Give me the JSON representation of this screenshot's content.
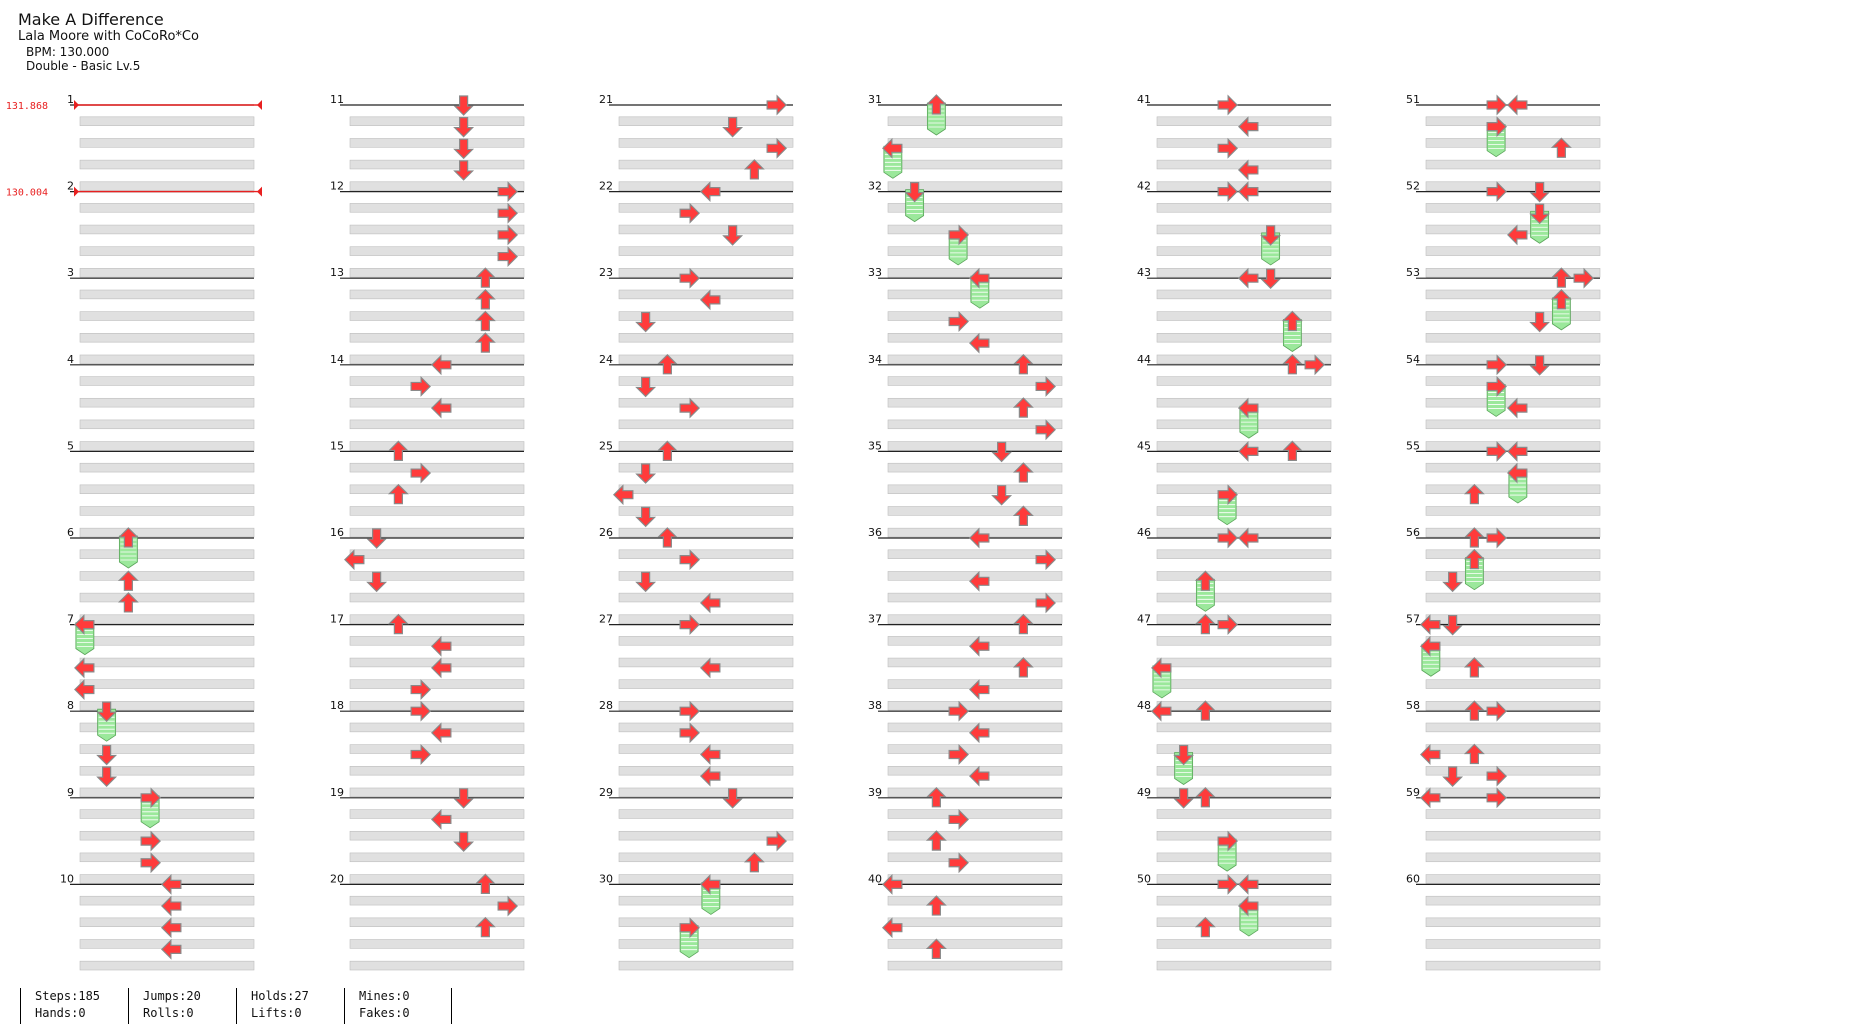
{
  "song": {
    "title": "Make A Difference",
    "artist": "Lala Moore with CoCoRo*Co",
    "bpm_text": "BPM: 130.000",
    "difficulty_text": "Double - Basic  Lv.5"
  },
  "bpm_changes": [
    {
      "measure": 1,
      "label": "131.868"
    },
    {
      "measure": 2,
      "label": "130.004"
    }
  ],
  "colors": {
    "arrow": "#ff3b3b",
    "arrow_outline": "#8a8a8a",
    "hold_body": "#9be89b",
    "hold_stripe": "#ffffff",
    "bpm_line": "#e82020",
    "row_band": "#e0e0e0",
    "measure_line": "#222222"
  },
  "columns": [
    {
      "measures": [
        1,
        2,
        3,
        4,
        5,
        6,
        7,
        8,
        9,
        10
      ]
    },
    {
      "measures": [
        11,
        12,
        13,
        14,
        15,
        16,
        17,
        18,
        19,
        20
      ]
    },
    {
      "measures": [
        21,
        22,
        23,
        24,
        25,
        26,
        27,
        28,
        29,
        30
      ]
    },
    {
      "measures": [
        31,
        32,
        33,
        34,
        35,
        36,
        37,
        38,
        39,
        40
      ]
    },
    {
      "measures": [
        41,
        42,
        43,
        44,
        45,
        46,
        47,
        48,
        49,
        50
      ]
    },
    {
      "measures": [
        51,
        52,
        53,
        54,
        55,
        56,
        57,
        58,
        59,
        60
      ]
    }
  ],
  "notes": [
    {
      "m": 6,
      "b": 0,
      "lane": 2,
      "type": "hold"
    },
    {
      "m": 6,
      "b": 2,
      "lane": 2,
      "type": "tap"
    },
    {
      "m": 6,
      "b": 3,
      "lane": 2,
      "type": "tap"
    },
    {
      "m": 7,
      "b": 0,
      "lane": 0,
      "type": "hold"
    },
    {
      "m": 7,
      "b": 2,
      "lane": 0,
      "type": "tap"
    },
    {
      "m": 7,
      "b": 3,
      "lane": 0,
      "type": "tap"
    },
    {
      "m": 8,
      "b": 0,
      "lane": 1,
      "type": "hold"
    },
    {
      "m": 8,
      "b": 2,
      "lane": 1,
      "type": "tap"
    },
    {
      "m": 8,
      "b": 3,
      "lane": 1,
      "type": "tap"
    },
    {
      "m": 9,
      "b": 0,
      "lane": 3,
      "type": "hold"
    },
    {
      "m": 9,
      "b": 2,
      "lane": 3,
      "type": "tap"
    },
    {
      "m": 9,
      "b": 3,
      "lane": 3,
      "type": "tap"
    },
    {
      "m": 10,
      "b": 0,
      "lane": 4,
      "type": "tap"
    },
    {
      "m": 10,
      "b": 1,
      "lane": 4,
      "type": "tap"
    },
    {
      "m": 10,
      "b": 2,
      "lane": 4,
      "type": "tap"
    },
    {
      "m": 10,
      "b": 3,
      "lane": 4,
      "type": "tap"
    },
    {
      "m": 11,
      "b": 0,
      "lane": 5,
      "type": "tap"
    },
    {
      "m": 11,
      "b": 1,
      "lane": 5,
      "type": "tap"
    },
    {
      "m": 11,
      "b": 2,
      "lane": 5,
      "type": "tap"
    },
    {
      "m": 11,
      "b": 3,
      "lane": 5,
      "type": "tap"
    },
    {
      "m": 12,
      "b": 0,
      "lane": 7,
      "type": "tap"
    },
    {
      "m": 12,
      "b": 1,
      "lane": 7,
      "type": "tap"
    },
    {
      "m": 12,
      "b": 2,
      "lane": 7,
      "type": "tap"
    },
    {
      "m": 12,
      "b": 3,
      "lane": 7,
      "type": "tap"
    },
    {
      "m": 13,
      "b": 0,
      "lane": 6,
      "type": "tap"
    },
    {
      "m": 13,
      "b": 1,
      "lane": 6,
      "type": "tap"
    },
    {
      "m": 13,
      "b": 2,
      "lane": 6,
      "type": "tap"
    },
    {
      "m": 13,
      "b": 3,
      "lane": 6,
      "type": "tap"
    },
    {
      "m": 14,
      "b": 0,
      "lane": 4,
      "type": "tap"
    },
    {
      "m": 14,
      "b": 1,
      "lane": 3,
      "type": "tap"
    },
    {
      "m": 14,
      "b": 2,
      "lane": 4,
      "type": "tap"
    },
    {
      "m": 15,
      "b": 0,
      "lane": 2,
      "type": "tap"
    },
    {
      "m": 15,
      "b": 1,
      "lane": 3,
      "type": "tap"
    },
    {
      "m": 15,
      "b": 2,
      "lane": 2,
      "type": "tap"
    },
    {
      "m": 16,
      "b": 0,
      "lane": 1,
      "type": "tap"
    },
    {
      "m": 16,
      "b": 1,
      "lane": 0,
      "type": "tap"
    },
    {
      "m": 16,
      "b": 2,
      "lane": 1,
      "type": "tap"
    },
    {
      "m": 17,
      "b": 0,
      "lane": 2,
      "type": "tap"
    },
    {
      "m": 17,
      "b": 1,
      "lane": 4,
      "type": "tap"
    },
    {
      "m": 17,
      "b": 2,
      "lane": 4,
      "type": "tap"
    },
    {
      "m": 17,
      "b": 3,
      "lane": 3,
      "type": "tap"
    },
    {
      "m": 18,
      "b": 0,
      "lane": 3,
      "type": "tap"
    },
    {
      "m": 18,
      "b": 1,
      "lane": 4,
      "type": "tap"
    },
    {
      "m": 18,
      "b": 2,
      "lane": 3,
      "type": "tap"
    },
    {
      "m": 19,
      "b": 0,
      "lane": 5,
      "type": "tap"
    },
    {
      "m": 19,
      "b": 1,
      "lane": 4,
      "type": "tap"
    },
    {
      "m": 19,
      "b": 2,
      "lane": 5,
      "type": "tap"
    },
    {
      "m": 20,
      "b": 0,
      "lane": 6,
      "type": "tap"
    },
    {
      "m": 20,
      "b": 1,
      "lane": 7,
      "type": "tap"
    },
    {
      "m": 20,
      "b": 2,
      "lane": 6,
      "type": "tap"
    },
    {
      "m": 21,
      "b": 0,
      "lane": 7,
      "type": "tap"
    },
    {
      "m": 21,
      "b": 1,
      "lane": 5,
      "type": "tap"
    },
    {
      "m": 21,
      "b": 2,
      "lane": 7,
      "type": "tap"
    },
    {
      "m": 21,
      "b": 3,
      "lane": 6,
      "type": "tap"
    },
    {
      "m": 22,
      "b": 0,
      "lane": 4,
      "type": "tap"
    },
    {
      "m": 22,
      "b": 1,
      "lane": 3,
      "type": "tap"
    },
    {
      "m": 22,
      "b": 2,
      "lane": 5,
      "type": "tap"
    },
    {
      "m": 23,
      "b": 0,
      "lane": 3,
      "type": "tap"
    },
    {
      "m": 23,
      "b": 1,
      "lane": 4,
      "type": "tap"
    },
    {
      "m": 23,
      "b": 2,
      "lane": 1,
      "type": "tap"
    },
    {
      "m": 24,
      "b": 0,
      "lane": 2,
      "type": "tap"
    },
    {
      "m": 24,
      "b": 1,
      "lane": 1,
      "type": "tap"
    },
    {
      "m": 24,
      "b": 2,
      "lane": 3,
      "type": "tap"
    },
    {
      "m": 25,
      "b": 0,
      "lane": 2,
      "type": "tap"
    },
    {
      "m": 25,
      "b": 1,
      "lane": 1,
      "type": "tap"
    },
    {
      "m": 25,
      "b": 2,
      "lane": 0,
      "type": "tap"
    },
    {
      "m": 25,
      "b": 3,
      "lane": 1,
      "type": "tap"
    },
    {
      "m": 26,
      "b": 0,
      "lane": 2,
      "type": "tap"
    },
    {
      "m": 26,
      "b": 1,
      "lane": 3,
      "type": "tap"
    },
    {
      "m": 26,
      "b": 2,
      "lane": 1,
      "type": "tap"
    },
    {
      "m": 26,
      "b": 3,
      "lane": 4,
      "type": "tap"
    },
    {
      "m": 27,
      "b": 0,
      "lane": 3,
      "type": "tap"
    },
    {
      "m": 27,
      "b": 2,
      "lane": 4,
      "type": "tap"
    },
    {
      "m": 28,
      "b": 0,
      "lane": 3,
      "type": "tap"
    },
    {
      "m": 28,
      "b": 1,
      "lane": 3,
      "type": "tap"
    },
    {
      "m": 28,
      "b": 2,
      "lane": 4,
      "type": "tap"
    },
    {
      "m": 28,
      "b": 3,
      "lane": 4,
      "type": "tap"
    },
    {
      "m": 29,
      "b": 0,
      "lane": 5,
      "type": "tap"
    },
    {
      "m": 29,
      "b": 2,
      "lane": 7,
      "type": "tap"
    },
    {
      "m": 29,
      "b": 3,
      "lane": 6,
      "type": "tap"
    },
    {
      "m": 30,
      "b": 0,
      "lane": 4,
      "type": "hold"
    },
    {
      "m": 30,
      "b": 2,
      "lane": 3,
      "type": "hold"
    },
    {
      "m": 31,
      "b": 0,
      "lane": 2,
      "type": "hold"
    },
    {
      "m": 31,
      "b": 2,
      "lane": 0,
      "type": "hold"
    },
    {
      "m": 32,
      "b": 0,
      "lane": 1,
      "type": "hold"
    },
    {
      "m": 32,
      "b": 2,
      "lane": 3,
      "type": "hold"
    },
    {
      "m": 33,
      "b": 0,
      "lane": 4,
      "type": "hold"
    },
    {
      "m": 33,
      "b": 2,
      "lane": 3,
      "type": "tap"
    },
    {
      "m": 33,
      "b": 3,
      "lane": 4,
      "type": "tap"
    },
    {
      "m": 34,
      "b": 0,
      "lane": 6,
      "type": "tap"
    },
    {
      "m": 34,
      "b": 1,
      "lane": 7,
      "type": "tap"
    },
    {
      "m": 34,
      "b": 2,
      "lane": 6,
      "type": "tap"
    },
    {
      "m": 34,
      "b": 3,
      "lane": 7,
      "type": "tap"
    },
    {
      "m": 35,
      "b": 0,
      "lane": 5,
      "type": "tap"
    },
    {
      "m": 35,
      "b": 1,
      "lane": 6,
      "type": "tap"
    },
    {
      "m": 35,
      "b": 2,
      "lane": 5,
      "type": "tap"
    },
    {
      "m": 35,
      "b": 3,
      "lane": 6,
      "type": "tap"
    },
    {
      "m": 36,
      "b": 0,
      "lane": 4,
      "type": "tap"
    },
    {
      "m": 36,
      "b": 1,
      "lane": 7,
      "type": "tap"
    },
    {
      "m": 36,
      "b": 2,
      "lane": 4,
      "type": "tap"
    },
    {
      "m": 36,
      "b": 3,
      "lane": 7,
      "type": "tap"
    },
    {
      "m": 37,
      "b": 0,
      "lane": 6,
      "type": "tap"
    },
    {
      "m": 37,
      "b": 1,
      "lane": 4,
      "type": "tap"
    },
    {
      "m": 37,
      "b": 2,
      "lane": 6,
      "type": "tap"
    },
    {
      "m": 37,
      "b": 3,
      "lane": 4,
      "type": "tap"
    },
    {
      "m": 38,
      "b": 0,
      "lane": 3,
      "type": "tap"
    },
    {
      "m": 38,
      "b": 1,
      "lane": 4,
      "type": "tap"
    },
    {
      "m": 38,
      "b": 2,
      "lane": 3,
      "type": "tap"
    },
    {
      "m": 38,
      "b": 3,
      "lane": 4,
      "type": "tap"
    },
    {
      "m": 39,
      "b": 0,
      "lane": 2,
      "type": "tap"
    },
    {
      "m": 39,
      "b": 1,
      "lane": 3,
      "type": "tap"
    },
    {
      "m": 39,
      "b": 2,
      "lane": 2,
      "type": "tap"
    },
    {
      "m": 39,
      "b": 3,
      "lane": 3,
      "type": "tap"
    },
    {
      "m": 40,
      "b": 0,
      "lane": 0,
      "type": "tap"
    },
    {
      "m": 40,
      "b": 1,
      "lane": 2,
      "type": "tap"
    },
    {
      "m": 40,
      "b": 2,
      "lane": 0,
      "type": "tap"
    },
    {
      "m": 40,
      "b": 3,
      "lane": 2,
      "type": "tap"
    },
    {
      "m": 41,
      "b": 0,
      "lane": 3,
      "type": "tap"
    },
    {
      "m": 41,
      "b": 1,
      "lane": 4,
      "type": "tap"
    },
    {
      "m": 41,
      "b": 2,
      "lane": 3,
      "type": "tap"
    },
    {
      "m": 41,
      "b": 3,
      "lane": 4,
      "type": "tap"
    },
    {
      "m": 42,
      "b": 0,
      "lane": 3,
      "type": "tap"
    },
    {
      "m": 42,
      "b": 0,
      "lane": 4,
      "type": "tap"
    },
    {
      "m": 42,
      "b": 2,
      "lane": 5,
      "type": "hold"
    },
    {
      "m": 43,
      "b": 0,
      "lane": 4,
      "type": "tap"
    },
    {
      "m": 43,
      "b": 0,
      "lane": 5,
      "type": "tap"
    },
    {
      "m": 43,
      "b": 2,
      "lane": 6,
      "type": "hold"
    },
    {
      "m": 44,
      "b": 0,
      "lane": 6,
      "type": "tap"
    },
    {
      "m": 44,
      "b": 0,
      "lane": 7,
      "type": "tap"
    },
    {
      "m": 44,
      "b": 2,
      "lane": 4,
      "type": "hold"
    },
    {
      "m": 45,
      "b": 0,
      "lane": 4,
      "type": "tap"
    },
    {
      "m": 45,
      "b": 0,
      "lane": 6,
      "type": "tap"
    },
    {
      "m": 45,
      "b": 2,
      "lane": 3,
      "type": "hold"
    },
    {
      "m": 46,
      "b": 0,
      "lane": 3,
      "type": "tap"
    },
    {
      "m": 46,
      "b": 0,
      "lane": 4,
      "type": "tap"
    },
    {
      "m": 46,
      "b": 2,
      "lane": 2,
      "type": "hold"
    },
    {
      "m": 47,
      "b": 0,
      "lane": 2,
      "type": "tap"
    },
    {
      "m": 47,
      "b": 0,
      "lane": 3,
      "type": "tap"
    },
    {
      "m": 47,
      "b": 2,
      "lane": 0,
      "type": "hold"
    },
    {
      "m": 48,
      "b": 0,
      "lane": 0,
      "type": "tap"
    },
    {
      "m": 48,
      "b": 0,
      "lane": 2,
      "type": "tap"
    },
    {
      "m": 48,
      "b": 2,
      "lane": 1,
      "type": "hold"
    },
    {
      "m": 49,
      "b": 0,
      "lane": 1,
      "type": "tap"
    },
    {
      "m": 49,
      "b": 0,
      "lane": 2,
      "type": "tap"
    },
    {
      "m": 49,
      "b": 2,
      "lane": 3,
      "type": "hold"
    },
    {
      "m": 50,
      "b": 0,
      "lane": 3,
      "type": "tap"
    },
    {
      "m": 50,
      "b": 0,
      "lane": 4,
      "type": "tap"
    },
    {
      "m": 50,
      "b": 1,
      "lane": 4,
      "type": "hold"
    },
    {
      "m": 50,
      "b": 2,
      "lane": 2,
      "type": "tap"
    },
    {
      "m": 51,
      "b": 0,
      "lane": 3,
      "type": "tap"
    },
    {
      "m": 51,
      "b": 0,
      "lane": 4,
      "type": "tap"
    },
    {
      "m": 51,
      "b": 1,
      "lane": 3,
      "type": "hold"
    },
    {
      "m": 51,
      "b": 2,
      "lane": 6,
      "type": "tap"
    },
    {
      "m": 52,
      "b": 0,
      "lane": 3,
      "type": "tap"
    },
    {
      "m": 52,
      "b": 0,
      "lane": 5,
      "type": "tap"
    },
    {
      "m": 52,
      "b": 1,
      "lane": 5,
      "type": "hold"
    },
    {
      "m": 52,
      "b": 2,
      "lane": 4,
      "type": "tap"
    },
    {
      "m": 53,
      "b": 0,
      "lane": 6,
      "type": "tap"
    },
    {
      "m": 53,
      "b": 0,
      "lane": 7,
      "type": "tap"
    },
    {
      "m": 53,
      "b": 1,
      "lane": 6,
      "type": "hold"
    },
    {
      "m": 53,
      "b": 2,
      "lane": 5,
      "type": "tap"
    },
    {
      "m": 54,
      "b": 0,
      "lane": 3,
      "type": "tap"
    },
    {
      "m": 54,
      "b": 0,
      "lane": 5,
      "type": "tap"
    },
    {
      "m": 54,
      "b": 1,
      "lane": 3,
      "type": "hold"
    },
    {
      "m": 54,
      "b": 2,
      "lane": 4,
      "type": "tap"
    },
    {
      "m": 55,
      "b": 0,
      "lane": 3,
      "type": "tap"
    },
    {
      "m": 55,
      "b": 0,
      "lane": 4,
      "type": "tap"
    },
    {
      "m": 55,
      "b": 1,
      "lane": 4,
      "type": "hold"
    },
    {
      "m": 55,
      "b": 2,
      "lane": 2,
      "type": "tap"
    },
    {
      "m": 56,
      "b": 0,
      "lane": 2,
      "type": "tap"
    },
    {
      "m": 56,
      "b": 0,
      "lane": 3,
      "type": "tap"
    },
    {
      "m": 56,
      "b": 1,
      "lane": 2,
      "type": "hold"
    },
    {
      "m": 56,
      "b": 2,
      "lane": 1,
      "type": "tap"
    },
    {
      "m": 57,
      "b": 0,
      "lane": 0,
      "type": "tap"
    },
    {
      "m": 57,
      "b": 0,
      "lane": 1,
      "type": "tap"
    },
    {
      "m": 57,
      "b": 1,
      "lane": 0,
      "type": "hold"
    },
    {
      "m": 57,
      "b": 2,
      "lane": 2,
      "type": "tap"
    },
    {
      "m": 58,
      "b": 0,
      "lane": 2,
      "type": "tap"
    },
    {
      "m": 58,
      "b": 0,
      "lane": 3,
      "type": "tap"
    },
    {
      "m": 58,
      "b": 2,
      "lane": 0,
      "type": "tap"
    },
    {
      "m": 58,
      "b": 2,
      "lane": 2,
      "type": "tap"
    },
    {
      "m": 58,
      "b": 3,
      "lane": 1,
      "type": "tap"
    },
    {
      "m": 58,
      "b": 3,
      "lane": 3,
      "type": "tap"
    },
    {
      "m": 59,
      "b": 0,
      "lane": 0,
      "type": "tap"
    },
    {
      "m": 59,
      "b": 0,
      "lane": 3,
      "type": "tap"
    }
  ],
  "stats": [
    {
      "top": "Steps:185",
      "bottom": "Hands:0"
    },
    {
      "top": "Jumps:20",
      "bottom": "Rolls:0"
    },
    {
      "top": "Holds:27",
      "bottom": "Lifts:0"
    },
    {
      "top": "Mines:0",
      "bottom": "Fakes:0"
    }
  ]
}
